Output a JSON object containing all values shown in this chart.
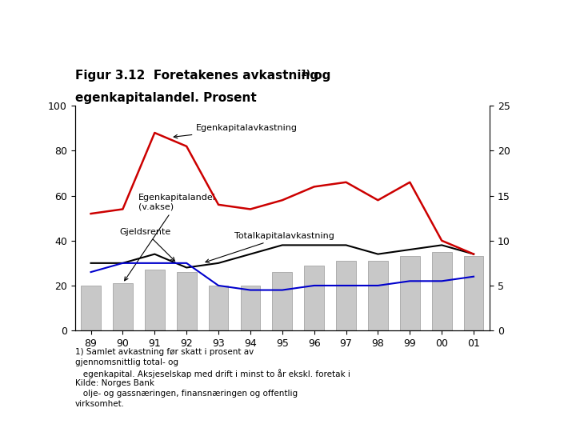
{
  "years_labels": [
    "89",
    "90",
    "91",
    "92",
    "93",
    "94",
    "95",
    "96",
    "97",
    "98",
    "99",
    "00",
    "01"
  ],
  "bar_values": [
    20,
    21,
    27,
    26,
    20,
    20,
    26,
    29,
    31,
    31,
    33,
    35,
    33
  ],
  "egenkapitalavkastning": [
    13.0,
    13.5,
    22.0,
    20.5,
    14.0,
    13.5,
    14.5,
    16.0,
    16.5,
    14.5,
    16.5,
    10.0,
    8.5
  ],
  "totalkapitalavkastning": [
    7.5,
    7.5,
    8.5,
    7.0,
    7.5,
    8.5,
    9.5,
    9.5,
    9.5,
    8.5,
    9.0,
    9.5,
    8.5
  ],
  "gjeldsrente": [
    6.5,
    7.5,
    7.5,
    7.5,
    5.0,
    4.5,
    4.5,
    5.0,
    5.0,
    5.0,
    5.5,
    5.5,
    6.0
  ],
  "bar_color": "#c8c8c8",
  "bar_edge_color": "#999999",
  "eq_return_color": "#cc0000",
  "total_return_color": "#000000",
  "debt_rate_color": "#0000cc",
  "left_ylim": [
    0,
    100
  ],
  "right_ylim": [
    0,
    25
  ],
  "left_yticks": [
    0,
    20,
    40,
    60,
    80,
    100
  ],
  "right_yticks": [
    0,
    5,
    10,
    15,
    20,
    25
  ],
  "title_bold": "Figur 3.12  Foretakenes avkastning",
  "title_super": "1)",
  "title_og": " og",
  "title2": "egenkapitalandel. Prosent",
  "ann_egenkapitalandel": "Egenkapitalandel\n(v.akse)",
  "ann_egenkapitalavkastning": "Egenkapitalavkastning",
  "ann_totalkapital": "Totalkapitalavkastning",
  "ann_gjeldsrente": "Gjeldsrente",
  "foot1": "1) Samlet avkastning før skatt i prosent av",
  "foot2": "gjennomsnittlig total- og",
  "foot3": "   egenkapital. Aksjeselskap med drift i minst to år ekskl. foretak i",
  "foot4": "Kilde: Norges Bank",
  "foot5": "   olje- og gassnæringen, finansnæringen og offentlig",
  "foot6": "virksomhet."
}
